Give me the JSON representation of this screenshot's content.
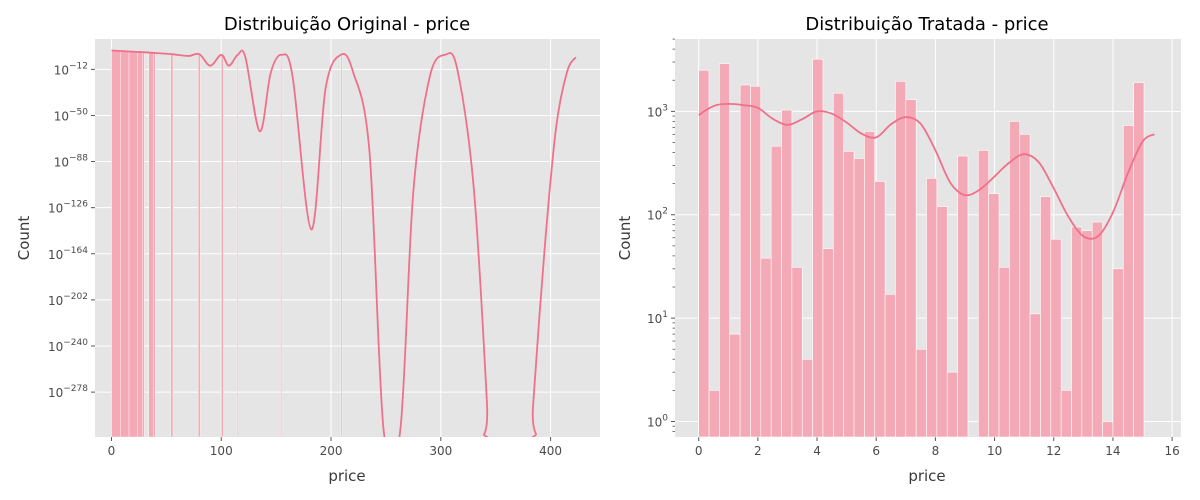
{
  "chart_data": [
    {
      "type": "histogram",
      "title": "Distribuição Original - price",
      "xlabel": "price",
      "ylabel": "Count",
      "y_scale": "log",
      "xlim": [
        -15,
        445
      ],
      "x_ticks": [
        0,
        100,
        200,
        300,
        400
      ],
      "y_tick_exponents": [
        -12,
        -50,
        -88,
        -126,
        -164,
        -202,
        -240,
        -278
      ],
      "ylim_exponent": [
        -315,
        13
      ],
      "grid": true,
      "bar_color": "#f4a9b6",
      "kde_color": "#f0708a",
      "bars": [
        {
          "x0": 0,
          "x1": 8,
          "exp": 3.5
        },
        {
          "x0": 8,
          "x1": 16,
          "exp": 3.4
        },
        {
          "x0": 16,
          "x1": 24,
          "exp": 3.3
        },
        {
          "x0": 24,
          "x1": 28,
          "exp": 3.0
        },
        {
          "x0": 28,
          "x1": 30,
          "exp": 2.0
        },
        {
          "x0": 34,
          "x1": 38,
          "exp": 2.0
        },
        {
          "x0": 38,
          "x1": 40,
          "exp": 1.5
        },
        {
          "x0": 54,
          "x1": 56,
          "exp": 0.5
        },
        {
          "x0": 79,
          "x1": 81,
          "exp": 0.5
        },
        {
          "x0": 100,
          "x1": 102,
          "exp": 0.3
        },
        {
          "x0": 114,
          "x1": 115,
          "exp": 0.0
        },
        {
          "x0": 154,
          "x1": 155,
          "exp": 0.0
        },
        {
          "x0": 209,
          "x1": 210,
          "exp": 0.0
        }
      ],
      "kde_points": [
        [
          0,
          3.5
        ],
        [
          20,
          2.5
        ],
        [
          40,
          1.5
        ],
        [
          55,
          0.5
        ],
        [
          70,
          -1
        ],
        [
          80,
          0.5
        ],
        [
          90,
          -9
        ],
        [
          100,
          0
        ],
        [
          107,
          -9
        ],
        [
          115,
          0
        ],
        [
          122,
          -2
        ],
        [
          135,
          -63
        ],
        [
          145,
          -15
        ],
        [
          155,
          0
        ],
        [
          165,
          -18
        ],
        [
          182,
          -144
        ],
        [
          195,
          -28
        ],
        [
          209,
          0
        ],
        [
          220,
          -14
        ],
        [
          235,
          -80
        ],
        [
          248,
          -310
        ],
        [
          263,
          -310
        ],
        [
          275,
          -112
        ],
        [
          290,
          -18
        ],
        [
          304,
          0
        ],
        [
          315,
          -12
        ],
        [
          330,
          -110
        ],
        [
          342,
          -286
        ],
        [
          342,
          -315
        ],
        [
          384,
          -315
        ],
        [
          384,
          -290
        ],
        [
          395,
          -155
        ],
        [
          405,
          -60
        ],
        [
          415,
          -14
        ],
        [
          423,
          -2
        ]
      ]
    },
    {
      "type": "histogram",
      "title": "Distribuição Tratada - price",
      "xlabel": "price",
      "ylabel": "Count",
      "y_scale": "log",
      "xlim": [
        -0.8,
        16.3
      ],
      "x_ticks": [
        0,
        2,
        4,
        6,
        8,
        10,
        12,
        14,
        16
      ],
      "y_tick_exponents": [
        0,
        1,
        2,
        3
      ],
      "ylim_exponent": [
        -0.15,
        3.7
      ],
      "grid": true,
      "bar_color": "#f4a9b6",
      "kde_color": "#f0708a",
      "bin_width": 0.35,
      "bar_start": 0.0,
      "bar_values": [
        2500,
        2,
        2900,
        7,
        1800,
        1750,
        38,
        460,
        1030,
        31,
        4,
        3200,
        47,
        1500,
        410,
        350,
        640,
        210,
        17,
        1950,
        1300,
        5,
        225,
        120,
        3,
        370,
        null,
        420,
        160,
        31,
        800,
        600,
        11,
        150,
        58,
        2,
        76,
        70,
        85,
        1,
        30,
        730,
        1900
      ],
      "kde_points": [
        [
          0,
          920
        ],
        [
          0.3,
          1050
        ],
        [
          0.6,
          1150
        ],
        [
          1.0,
          1180
        ],
        [
          1.5,
          1150
        ],
        [
          2.0,
          1080
        ],
        [
          2.5,
          850
        ],
        [
          3.0,
          740
        ],
        [
          3.5,
          840
        ],
        [
          4.0,
          1000
        ],
        [
          4.5,
          950
        ],
        [
          5.0,
          780
        ],
        [
          5.5,
          610
        ],
        [
          6.0,
          560
        ],
        [
          6.5,
          750
        ],
        [
          7.0,
          880
        ],
        [
          7.5,
          760
        ],
        [
          8.0,
          420
        ],
        [
          8.5,
          205
        ],
        [
          9.0,
          155
        ],
        [
          9.5,
          175
        ],
        [
          10.0,
          235
        ],
        [
          10.5,
          320
        ],
        [
          11.0,
          385
        ],
        [
          11.5,
          320
        ],
        [
          12.0,
          180
        ],
        [
          12.5,
          95
        ],
        [
          13.0,
          62
        ],
        [
          13.5,
          62
        ],
        [
          14.0,
          105
        ],
        [
          14.5,
          250
        ],
        [
          15.0,
          510
        ],
        [
          15.4,
          600
        ]
      ]
    }
  ]
}
